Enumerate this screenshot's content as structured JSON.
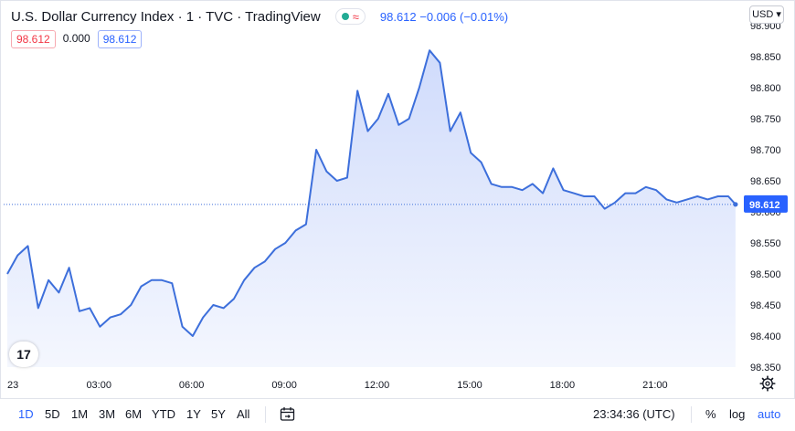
{
  "header": {
    "symbol_title": "U.S. Dollar Currency Index · 1 · TVC · TradingView",
    "status_approx": "≈",
    "price_line": "98.612 −0.006 (−0.01%)"
  },
  "quote": {
    "bid": "98.612",
    "spread": "0.000",
    "ask": "98.612"
  },
  "currency_button": "USD ▾",
  "logo_text": "17",
  "toolbar": {
    "ranges": [
      "1D",
      "5D",
      "1M",
      "3M",
      "6M",
      "YTD",
      "1Y",
      "5Y",
      "All"
    ],
    "active_range": "1D",
    "clock": "23:34:36 (UTC)",
    "percent": "%",
    "log": "log",
    "auto": "auto"
  },
  "colors": {
    "line": "#3d6fdb",
    "fill_top": "#cdd9fb",
    "fill_bottom": "#f3f6fe",
    "last_price_badge": "#2962ff",
    "accent": "#2962ff",
    "down": "#f23645",
    "live": "#22ab94"
  },
  "icons": {
    "logo": "tradingview-logo-icon",
    "settings": "gear-icon",
    "calendar": "calendar-range-icon",
    "status": "market-open-icon"
  },
  "chart_data": {
    "type": "area",
    "title": "U.S. Dollar Currency Index · 1 · TVC · TradingView",
    "xlabel": "",
    "ylabel": "",
    "x_ticks": [
      "23",
      "03:00",
      "06:00",
      "09:00",
      "12:00",
      "15:00",
      "18:00",
      "21:00"
    ],
    "y_ticks": [
      "98.900",
      "98.850",
      "98.800",
      "98.750",
      "98.700",
      "98.650",
      "98.600",
      "98.550",
      "98.500",
      "98.450",
      "98.400",
      "98.350"
    ],
    "ylim": [
      98.35,
      98.9
    ],
    "last_price": "98.612",
    "series": [
      {
        "x": [
          "00:00",
          "00:20",
          "00:40",
          "01:00",
          "01:20",
          "01:40",
          "02:00",
          "02:20",
          "02:40",
          "03:00",
          "03:20",
          "03:40",
          "04:00",
          "04:20",
          "04:40",
          "05:00",
          "05:20",
          "05:40",
          "06:00",
          "06:20",
          "06:40",
          "07:00",
          "07:20",
          "07:40",
          "08:00",
          "08:20",
          "08:40",
          "09:00",
          "09:20",
          "09:40",
          "10:00",
          "10:20",
          "10:40",
          "11:00",
          "11:20",
          "11:40",
          "12:00",
          "12:20",
          "12:40",
          "13:00",
          "13:20",
          "13:40",
          "14:00",
          "14:20",
          "14:40",
          "15:00",
          "15:20",
          "15:40",
          "16:00",
          "16:20",
          "16:40",
          "17:00",
          "17:20",
          "17:40",
          "18:00",
          "18:20",
          "18:40",
          "19:00",
          "19:20",
          "19:40",
          "20:00",
          "20:20",
          "20:40",
          "21:00",
          "21:20",
          "21:40",
          "22:00",
          "22:20",
          "22:40",
          "23:00",
          "23:20",
          "23:34"
        ],
        "values": [
          98.5,
          98.53,
          98.545,
          98.445,
          98.49,
          98.47,
          98.51,
          98.44,
          98.445,
          98.415,
          98.43,
          98.435,
          98.45,
          98.48,
          98.49,
          98.49,
          98.485,
          98.415,
          98.4,
          98.43,
          98.45,
          98.445,
          98.46,
          98.49,
          98.51,
          98.52,
          98.54,
          98.55,
          98.57,
          98.58,
          98.7,
          98.665,
          98.65,
          98.655,
          98.795,
          98.73,
          98.75,
          98.79,
          98.74,
          98.75,
          98.8,
          98.86,
          98.84,
          98.73,
          98.76,
          98.695,
          98.68,
          98.645,
          98.64,
          98.64,
          98.635,
          98.645,
          98.63,
          98.67,
          98.635,
          98.63,
          98.625,
          98.625,
          98.605,
          98.615,
          98.63,
          98.63,
          98.64,
          98.635,
          98.62,
          98.615,
          98.62,
          98.625,
          98.62,
          98.625,
          98.625,
          98.612
        ]
      }
    ]
  }
}
